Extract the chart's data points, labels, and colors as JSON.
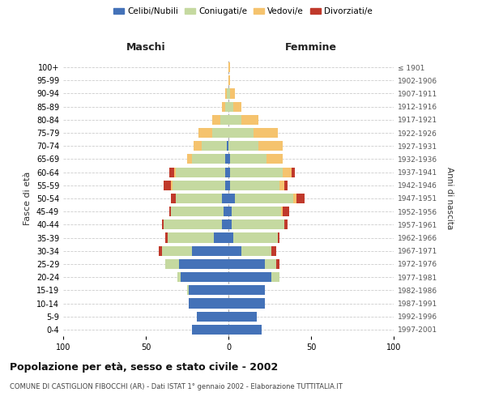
{
  "age_groups": [
    "0-4",
    "5-9",
    "10-14",
    "15-19",
    "20-24",
    "25-29",
    "30-34",
    "35-39",
    "40-44",
    "45-49",
    "50-54",
    "55-59",
    "60-64",
    "65-69",
    "70-74",
    "75-79",
    "80-84",
    "85-89",
    "90-94",
    "95-99",
    "100+"
  ],
  "birth_years": [
    "1997-2001",
    "1992-1996",
    "1987-1991",
    "1982-1986",
    "1977-1981",
    "1972-1976",
    "1967-1971",
    "1962-1966",
    "1957-1961",
    "1952-1956",
    "1947-1951",
    "1942-1946",
    "1937-1941",
    "1932-1936",
    "1927-1931",
    "1922-1926",
    "1917-1921",
    "1912-1916",
    "1907-1911",
    "1902-1906",
    "≤ 1901"
  ],
  "maschi": {
    "celibi": [
      22,
      19,
      24,
      24,
      29,
      30,
      22,
      9,
      4,
      3,
      4,
      2,
      2,
      2,
      1,
      0,
      0,
      0,
      0,
      0,
      0
    ],
    "coniugati": [
      0,
      0,
      0,
      1,
      2,
      8,
      18,
      28,
      35,
      32,
      28,
      32,
      30,
      20,
      15,
      10,
      5,
      2,
      1,
      0,
      0
    ],
    "vedovi": [
      0,
      0,
      0,
      0,
      0,
      0,
      0,
      0,
      0,
      0,
      0,
      1,
      1,
      3,
      5,
      8,
      5,
      2,
      1,
      0,
      0
    ],
    "divorziati": [
      0,
      0,
      0,
      0,
      0,
      0,
      2,
      1,
      1,
      1,
      3,
      4,
      3,
      0,
      0,
      0,
      0,
      0,
      0,
      0,
      0
    ]
  },
  "femmine": {
    "nubili": [
      20,
      17,
      22,
      22,
      26,
      22,
      8,
      3,
      2,
      2,
      4,
      1,
      1,
      1,
      0,
      0,
      0,
      0,
      0,
      0,
      0
    ],
    "coniugate": [
      0,
      0,
      0,
      0,
      5,
      7,
      18,
      27,
      32,
      30,
      35,
      30,
      32,
      22,
      18,
      15,
      8,
      3,
      1,
      0,
      0
    ],
    "vedove": [
      0,
      0,
      0,
      0,
      0,
      0,
      0,
      0,
      0,
      1,
      2,
      3,
      5,
      10,
      15,
      15,
      10,
      5,
      3,
      1,
      1
    ],
    "divorziate": [
      0,
      0,
      0,
      0,
      0,
      2,
      3,
      1,
      2,
      4,
      5,
      2,
      2,
      0,
      0,
      0,
      0,
      0,
      0,
      0,
      0
    ]
  },
  "colors": {
    "celibi": "#4472b8",
    "coniugati": "#c5d9a0",
    "vedovi": "#f5c36e",
    "divorziati": "#c0392b"
  },
  "xlim": 100,
  "title": "Popolazione per età, sesso e stato civile - 2002",
  "subtitle": "COMUNE DI CASTIGLION FIBOCCHI (AR) - Dati ISTAT 1° gennaio 2002 - Elaborazione TUTTITALIA.IT",
  "ylabel_left": "Fasce di età",
  "ylabel_right": "Anni di nascita",
  "header_left": "Maschi",
  "header_right": "Femmine",
  "legend_labels": [
    "Celibi/Nubili",
    "Coniugati/e",
    "Vedovi/e",
    "Divorziati/e"
  ]
}
